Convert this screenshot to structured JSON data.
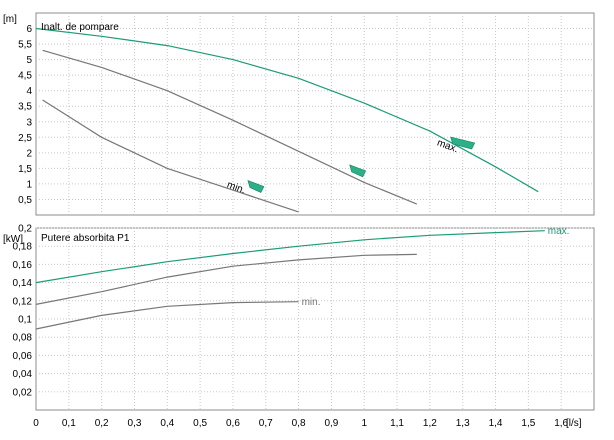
{
  "chart_data": [
    {
      "type": "line",
      "title": "Inalt. de pompare",
      "ylabel": "[m]",
      "xlim": [
        0,
        1.7
      ],
      "ylim": [
        0,
        6.5
      ],
      "yticks": [
        "0,5",
        "1",
        "1,5",
        "2",
        "2,5",
        "3",
        "3,5",
        "4",
        "4,5",
        "5",
        "5,5",
        "6"
      ],
      "ytick_values": [
        0.5,
        1,
        1.5,
        2,
        2.5,
        3,
        3.5,
        4,
        4.5,
        5,
        5.5,
        6
      ],
      "grid": true,
      "series": [
        {
          "name": "max.",
          "color": "#1a9c78",
          "x": [
            0,
            0.2,
            0.4,
            0.6,
            0.8,
            1.0,
            1.2,
            1.4,
            1.53
          ],
          "y": [
            6.0,
            5.75,
            5.45,
            5.0,
            4.4,
            3.6,
            2.7,
            1.55,
            0.75
          ]
        },
        {
          "color": "#777777",
          "x": [
            0.02,
            0.2,
            0.4,
            0.6,
            0.8,
            1.0,
            1.16
          ],
          "y": [
            5.3,
            4.75,
            4.0,
            3.05,
            2.05,
            1.05,
            0.35
          ]
        },
        {
          "name": "min.",
          "color": "#777777",
          "x": [
            0.02,
            0.2,
            0.4,
            0.6,
            0.8
          ],
          "y": [
            3.7,
            2.5,
            1.5,
            0.8,
            0.1
          ]
        }
      ],
      "annotations": [
        {
          "text": "max.",
          "x": 1.22,
          "y": 2.25
        },
        {
          "text": "min.",
          "x": 0.58,
          "y": 0.9
        }
      ],
      "markers": [
        {
          "x": 1.3,
          "y": 2.35,
          "color": "#2bb087"
        },
        {
          "x": 0.98,
          "y": 1.45,
          "color": "#2bb087"
        },
        {
          "x": 0.67,
          "y": 0.95,
          "color": "#2bb087"
        }
      ]
    },
    {
      "type": "line",
      "title": "Putere absorbita P1",
      "ylabel": "[kW]",
      "xlabel": "[l/s]",
      "xlim": [
        0,
        1.7
      ],
      "ylim": [
        0,
        0.2
      ],
      "xticks": [
        "0",
        "0,1",
        "0,2",
        "0,3",
        "0,4",
        "0,5",
        "0,6",
        "0,7",
        "0,8",
        "0,9",
        "1",
        "1,1",
        "1,2",
        "1,3",
        "1,4",
        "1,5",
        "1,6"
      ],
      "xtick_values": [
        0,
        0.1,
        0.2,
        0.3,
        0.4,
        0.5,
        0.6,
        0.7,
        0.8,
        0.9,
        1,
        1.1,
        1.2,
        1.3,
        1.4,
        1.5,
        1.6
      ],
      "yticks": [
        "0,02",
        "0,04",
        "0,06",
        "0,08",
        "0,1",
        "0,12",
        "0,14",
        "0,16",
        "0,18",
        "0,2"
      ],
      "ytick_values": [
        0.02,
        0.04,
        0.06,
        0.08,
        0.1,
        0.12,
        0.14,
        0.16,
        0.18,
        0.2
      ],
      "grid": true,
      "series": [
        {
          "name": "max.",
          "color": "#1a9c78",
          "x": [
            0,
            0.2,
            0.4,
            0.6,
            0.8,
            1.0,
            1.2,
            1.4,
            1.55
          ],
          "y": [
            0.14,
            0.152,
            0.163,
            0.172,
            0.18,
            0.187,
            0.192,
            0.195,
            0.197
          ]
        },
        {
          "color": "#777777",
          "x": [
            0,
            0.2,
            0.4,
            0.6,
            0.8,
            1.0,
            1.16
          ],
          "y": [
            0.116,
            0.13,
            0.146,
            0.158,
            0.165,
            0.17,
            0.171
          ]
        },
        {
          "name": "min.",
          "color": "#777777",
          "x": [
            0,
            0.2,
            0.4,
            0.6,
            0.8
          ],
          "y": [
            0.089,
            0.104,
            0.114,
            0.118,
            0.119
          ]
        }
      ]
    }
  ]
}
